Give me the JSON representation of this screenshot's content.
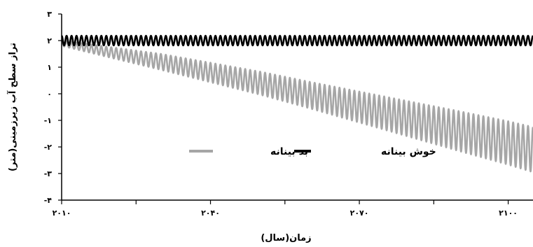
{
  "chart_data": {
    "type": "line",
    "title": "",
    "xlabel": "زمان(سال)",
    "ylabel": "تراز سطح آب زیرزمینی(متر)",
    "xlim": [
      2010,
      2105
    ],
    "ylim": [
      -4,
      3
    ],
    "x_ticks": [
      2010,
      2040,
      2070,
      2100
    ],
    "x_tick_labels": [
      "۲۰۱۰",
      "۲۰۴۰",
      "۲۰۷۰",
      "۲۱۰۰"
    ],
    "x_minor_ticks": [
      2025,
      2055,
      2085
    ],
    "y_ticks": [
      3,
      2,
      1,
      0,
      -1,
      -2,
      -3,
      -4
    ],
    "y_tick_labels": [
      "۳",
      "۲",
      "۱",
      "۰",
      "-۱",
      "-۲",
      "-۳",
      "-۴"
    ],
    "grid": false,
    "legend_position": "center",
    "oscillation_cycles_per_year": 1,
    "series": [
      {
        "name": "خوش بینانه",
        "color": "#000000",
        "trend": {
          "x": [
            2010,
            2105
          ],
          "y": [
            2.0,
            2.0
          ]
        },
        "amplitude": {
          "x": [
            2010,
            2105
          ],
          "y": [
            0.18,
            0.18
          ]
        }
      },
      {
        "name": "بد بینانه",
        "color": "#a6a6a6",
        "trend": {
          "x": [
            2010,
            2020,
            2030,
            2040,
            2050,
            2060,
            2070,
            2080,
            2090,
            2100,
            2105
          ],
          "y": [
            1.9,
            1.55,
            1.2,
            0.8,
            0.4,
            -0.05,
            -0.5,
            -0.95,
            -1.4,
            -1.85,
            -2.1
          ]
        },
        "amplitude": {
          "x": [
            2010,
            2030,
            2060,
            2090,
            2105
          ],
          "y": [
            0.1,
            0.3,
            0.5,
            0.75,
            0.85
          ]
        }
      }
    ]
  }
}
